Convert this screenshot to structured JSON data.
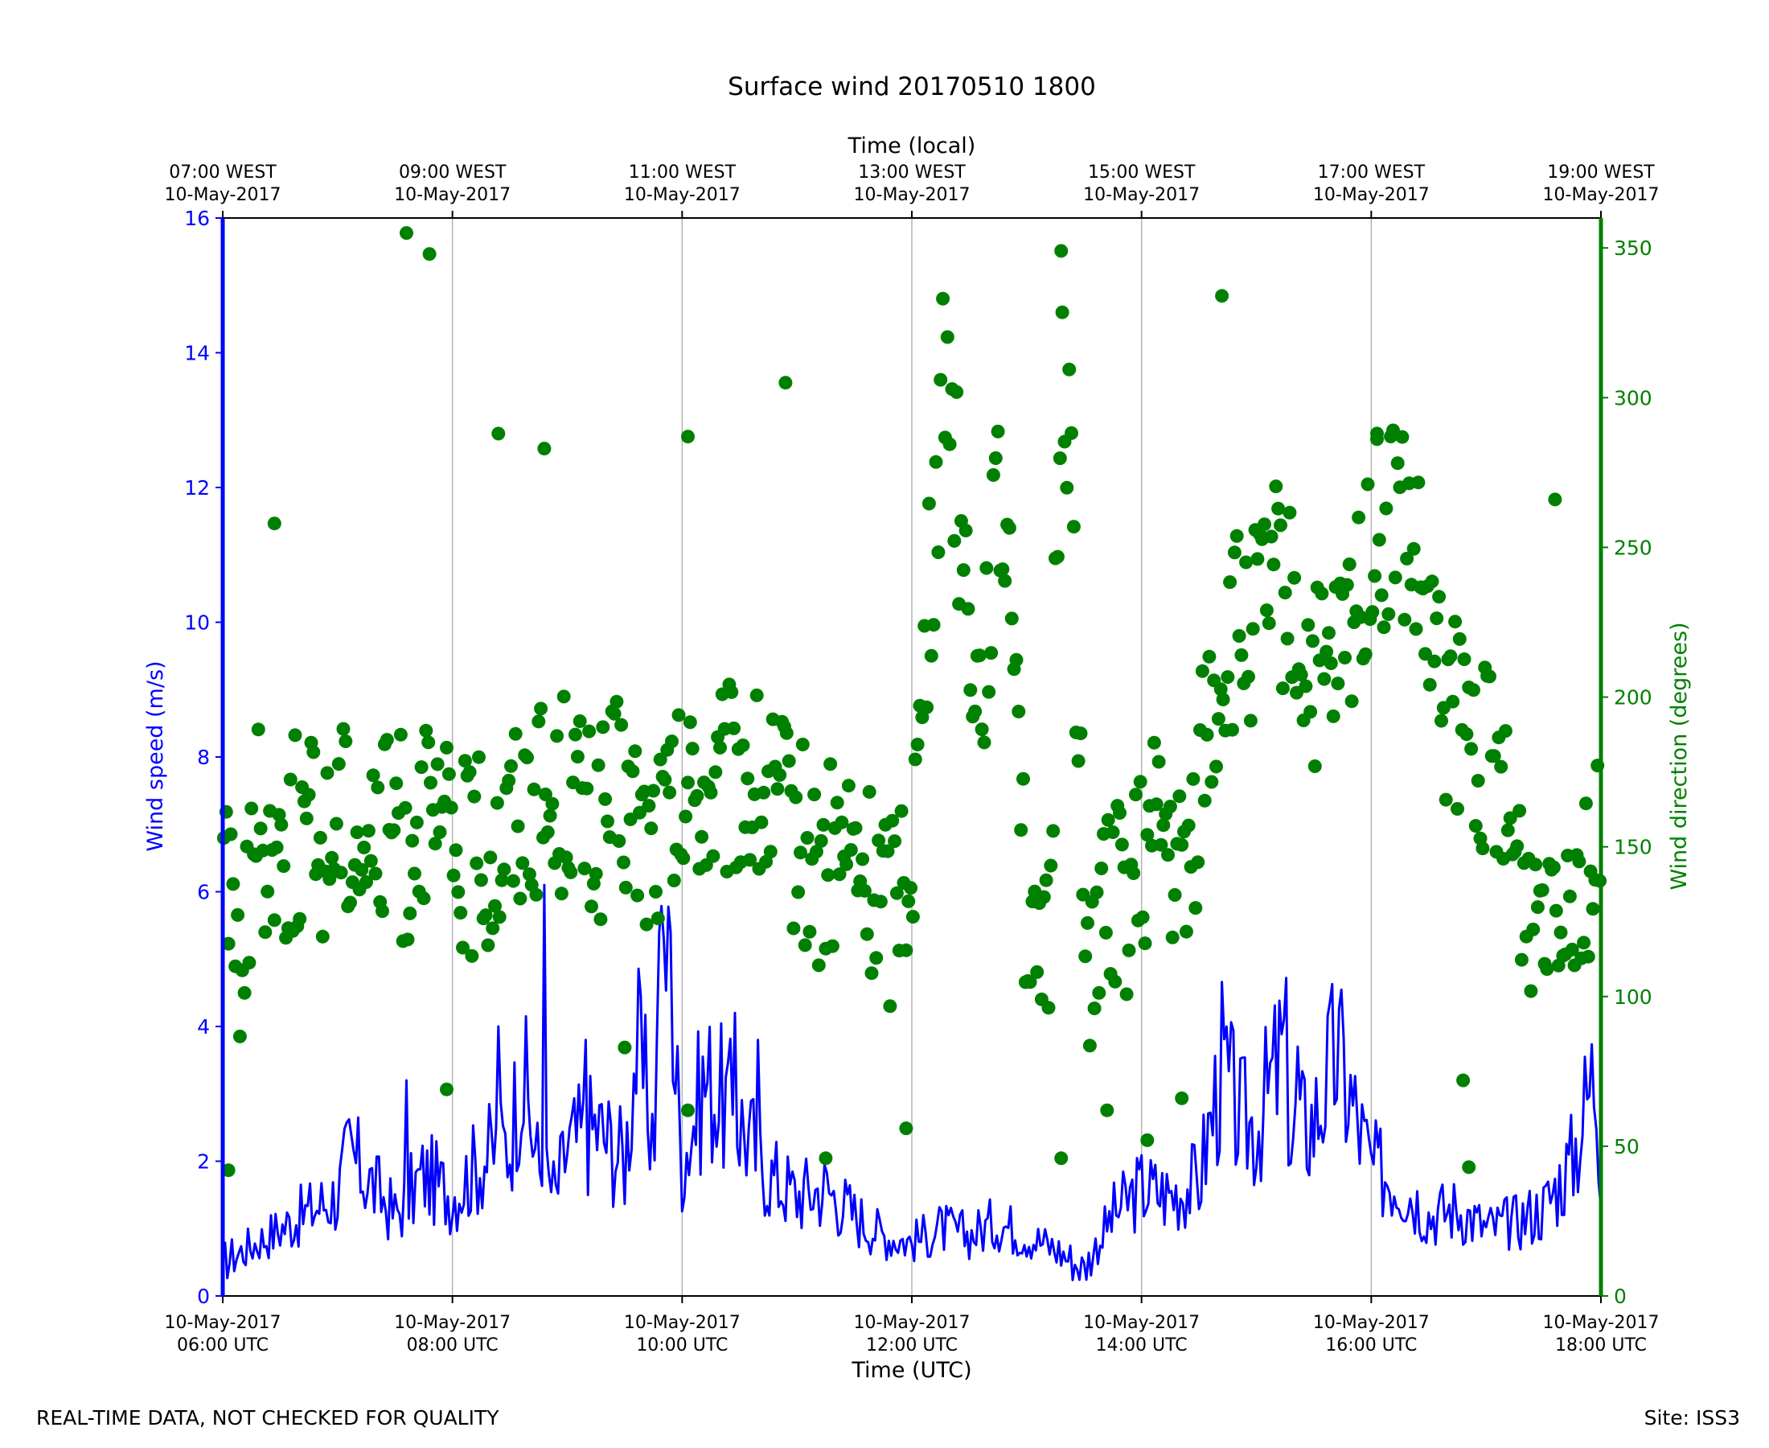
{
  "footer": {
    "left_note": "REAL-TIME DATA, NOT CHECKED FOR QUALITY",
    "site": "Site: ISS3"
  },
  "chart_data": {
    "type": "line+scatter",
    "title": "Surface wind 20170510 1800",
    "xlabel": "Time (UTC)",
    "top_xlabel": "Time (local)",
    "ylabel_left": "Wind speed (m/s)",
    "ylabel_right": "Wind direction (degrees)",
    "x_range": [
      "2017-05-10 06:00 UTC",
      "2017-05-10 18:00 UTC"
    ],
    "ylim_left": [
      0,
      16
    ],
    "ylim_right": [
      0,
      360
    ],
    "yticks_left": [
      0,
      2,
      4,
      6,
      8,
      10,
      12,
      14,
      16
    ],
    "yticks_right": [
      0,
      50,
      100,
      150,
      200,
      250,
      300,
      350
    ],
    "bottom_ticks": [
      {
        "line1": "10-May-2017",
        "line2": "06:00 UTC"
      },
      {
        "line1": "10-May-2017",
        "line2": "08:00 UTC"
      },
      {
        "line1": "10-May-2017",
        "line2": "10:00 UTC"
      },
      {
        "line1": "10-May-2017",
        "line2": "12:00 UTC"
      },
      {
        "line1": "10-May-2017",
        "line2": "14:00 UTC"
      },
      {
        "line1": "10-May-2017",
        "line2": "16:00 UTC"
      },
      {
        "line1": "10-May-2017",
        "line2": "18:00 UTC"
      }
    ],
    "top_ticks": [
      {
        "line1": "07:00 WEST",
        "line2": "10-May-2017"
      },
      {
        "line1": "09:00 WEST",
        "line2": "10-May-2017"
      },
      {
        "line1": "11:00 WEST",
        "line2": "10-May-2017"
      },
      {
        "line1": "13:00 WEST",
        "line2": "10-May-2017"
      },
      {
        "line1": "15:00 WEST",
        "line2": "10-May-2017"
      },
      {
        "line1": "17:00 WEST",
        "line2": "10-May-2017"
      },
      {
        "line1": "19:00 WEST",
        "line2": "10-May-2017"
      }
    ],
    "grid": "vertical lines at major x ticks",
    "colors": {
      "speed": "#0000ff",
      "direction": "#008000",
      "grid": "#b0b0b0",
      "axes": "#000000"
    },
    "series": [
      {
        "kind": "line",
        "axis": "left",
        "x_hours_utc": [
          6.0,
          6.5,
          7.0,
          7.1,
          7.5,
          7.75,
          8.0,
          8.25,
          8.5,
          8.6,
          8.75,
          8.9,
          9.0,
          9.25,
          9.5,
          9.6,
          9.75,
          9.85,
          10.0,
          10.2,
          10.5,
          10.75,
          11.0,
          11.25,
          11.5,
          11.75,
          12.0,
          12.25,
          12.5,
          12.75,
          13.0,
          13.25,
          13.5,
          13.75,
          14.0,
          14.25,
          14.5,
          14.7,
          14.85,
          15.0,
          15.25,
          15.3,
          15.5,
          15.7,
          16.0,
          16.25,
          16.5,
          16.75,
          17.0,
          17.25,
          17.5,
          17.75,
          17.95,
          18.0
        ],
        "values": [
          0.5,
          1.0,
          1.5,
          2.1,
          1.2,
          1.8,
          1.5,
          2.0,
          2.3,
          3.4,
          1.9,
          1.5,
          2.2,
          2.5,
          2.0,
          3.7,
          2.4,
          5.4,
          2.0,
          3.2,
          2.6,
          1.8,
          1.5,
          1.6,
          1.2,
          0.9,
          0.8,
          1.0,
          0.9,
          1.1,
          0.9,
          0.7,
          0.4,
          1.2,
          1.6,
          1.5,
          1.7,
          3.4,
          2.6,
          2.5,
          3.7,
          2.4,
          2.6,
          3.6,
          1.9,
          1.7,
          1.2,
          1.3,
          1.0,
          1.1,
          1.3,
          2.0,
          3.4,
          2.0
        ],
        "peaks": [
          {
            "x": 7.6,
            "y": 3.2
          },
          {
            "x": 8.4,
            "y": 4.0
          },
          {
            "x": 8.8,
            "y": 6.1
          },
          {
            "x": 9.15,
            "y": 3.8
          },
          {
            "x": 9.8,
            "y": 5.4
          },
          {
            "x": 9.9,
            "y": 5.4
          },
          {
            "x": 10.45,
            "y": 4.2
          },
          {
            "x": 10.65,
            "y": 3.8
          },
          {
            "x": 15.35,
            "y": 3.7
          }
        ]
      },
      {
        "kind": "scatter",
        "axis": "right",
        "x_hours_utc": [
          6.0,
          6.1,
          6.2,
          6.3,
          6.5,
          6.7,
          6.9,
          7.0,
          7.2,
          7.4,
          7.5,
          7.6,
          7.7,
          7.8,
          7.9,
          8.0,
          8.2,
          8.4,
          8.6,
          8.7,
          8.9,
          9.0,
          9.2,
          9.4,
          9.5,
          9.7,
          9.8,
          10.0,
          10.1,
          10.3,
          10.5,
          10.7,
          10.9,
          11.0,
          11.2,
          11.4,
          11.6,
          11.8,
          11.9,
          12.0,
          12.1,
          12.2,
          12.3,
          12.4,
          12.5,
          12.6,
          12.7,
          12.8,
          12.9,
          13.0,
          13.1,
          13.2,
          13.3,
          13.4,
          13.5,
          13.6,
          13.8,
          14.0,
          14.1,
          14.2,
          14.3,
          14.4,
          14.5,
          14.6,
          14.7,
          14.8,
          15.0,
          15.2,
          15.4,
          15.6,
          15.8,
          16.0,
          16.1,
          16.2,
          16.4,
          16.6,
          16.8,
          17.0,
          17.2,
          17.4,
          17.6,
          17.8,
          18.0
        ],
        "values": [
          170,
          110,
          125,
          160,
          150,
          155,
          150,
          165,
          155,
          150,
          165,
          145,
          170,
          150,
          155,
          150,
          145,
          150,
          165,
          170,
          160,
          175,
          155,
          165,
          165,
          150,
          155,
          160,
          170,
          165,
          175,
          165,
          160,
          155,
          140,
          150,
          140,
          130,
          145,
          150,
          200,
          260,
          320,
          270,
          230,
          200,
          250,
          260,
          240,
          120,
          95,
          110,
          330,
          270,
          110,
          125,
          130,
          140,
          150,
          155,
          140,
          135,
          175,
          195,
          210,
          220,
          225,
          240,
          215,
          200,
          220,
          255,
          250,
          265,
          240,
          200,
          190,
          180,
          150,
          130,
          145,
          140,
          150
        ],
        "outliers": [
          {
            "x": 6.05,
            "y": 42
          },
          {
            "x": 6.45,
            "y": 258
          },
          {
            "x": 7.6,
            "y": 355
          },
          {
            "x": 7.8,
            "y": 348
          },
          {
            "x": 7.95,
            "y": 69
          },
          {
            "x": 8.4,
            "y": 288
          },
          {
            "x": 8.8,
            "y": 283
          },
          {
            "x": 9.5,
            "y": 83
          },
          {
            "x": 10.05,
            "y": 62
          },
          {
            "x": 10.05,
            "y": 287
          },
          {
            "x": 10.9,
            "y": 305
          },
          {
            "x": 11.25,
            "y": 46
          },
          {
            "x": 11.95,
            "y": 56
          },
          {
            "x": 13.3,
            "y": 349
          },
          {
            "x": 13.3,
            "y": 46
          },
          {
            "x": 13.7,
            "y": 62
          },
          {
            "x": 14.05,
            "y": 52
          },
          {
            "x": 14.35,
            "y": 66
          },
          {
            "x": 14.7,
            "y": 334
          },
          {
            "x": 16.05,
            "y": 288
          },
          {
            "x": 16.8,
            "y": 72
          },
          {
            "x": 16.85,
            "y": 43
          },
          {
            "x": 17.6,
            "y": 266
          }
        ]
      }
    ]
  }
}
